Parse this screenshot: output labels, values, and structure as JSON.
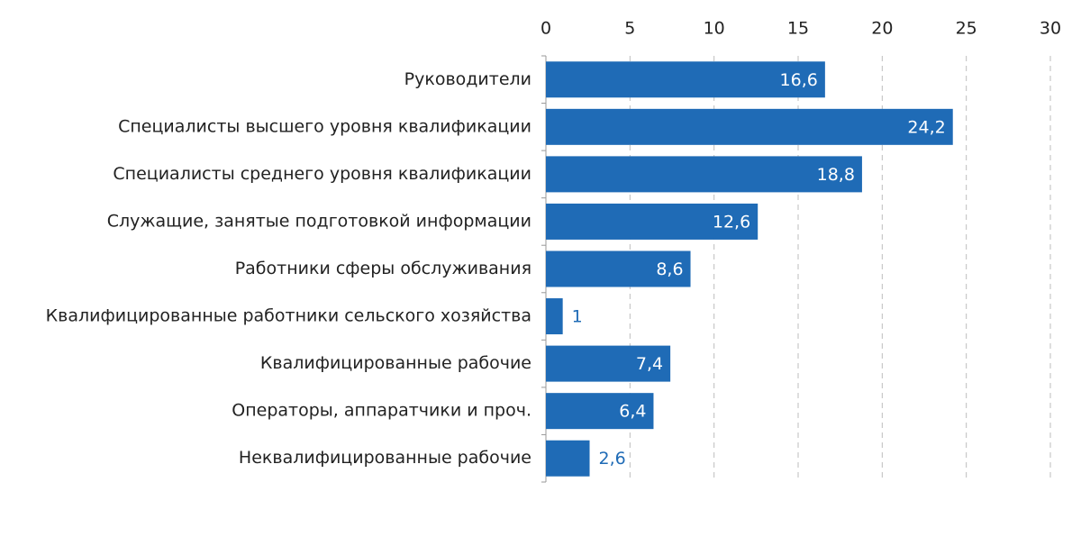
{
  "chart_data": {
    "type": "bar",
    "orientation": "horizontal",
    "categories": [
      "Руководители",
      "Специалисты высшего уровня квалификации",
      "Специалисты среднего уровня квалификации",
      "Служащие, занятые подготовкой информации",
      "Работники сферы обслуживания",
      "Квалифицированные работники сельского хозяйства",
      "Квалифицированные рабочие",
      "Операторы, аппаратчики и проч.",
      "Неквалифицированные рабочие"
    ],
    "values": [
      16.6,
      24.2,
      18.8,
      12.6,
      8.6,
      1,
      7.4,
      6.4,
      2.6
    ],
    "value_labels": [
      "16,6",
      "24,2",
      "18,8",
      "12,6",
      "8,6",
      "1",
      "7,4",
      "6,4",
      "2,6"
    ],
    "color": "#1f6bb6",
    "xlim": [
      0,
      30
    ],
    "xticks": [
      0,
      5,
      10,
      15,
      20,
      25,
      30
    ],
    "grid": true
  }
}
